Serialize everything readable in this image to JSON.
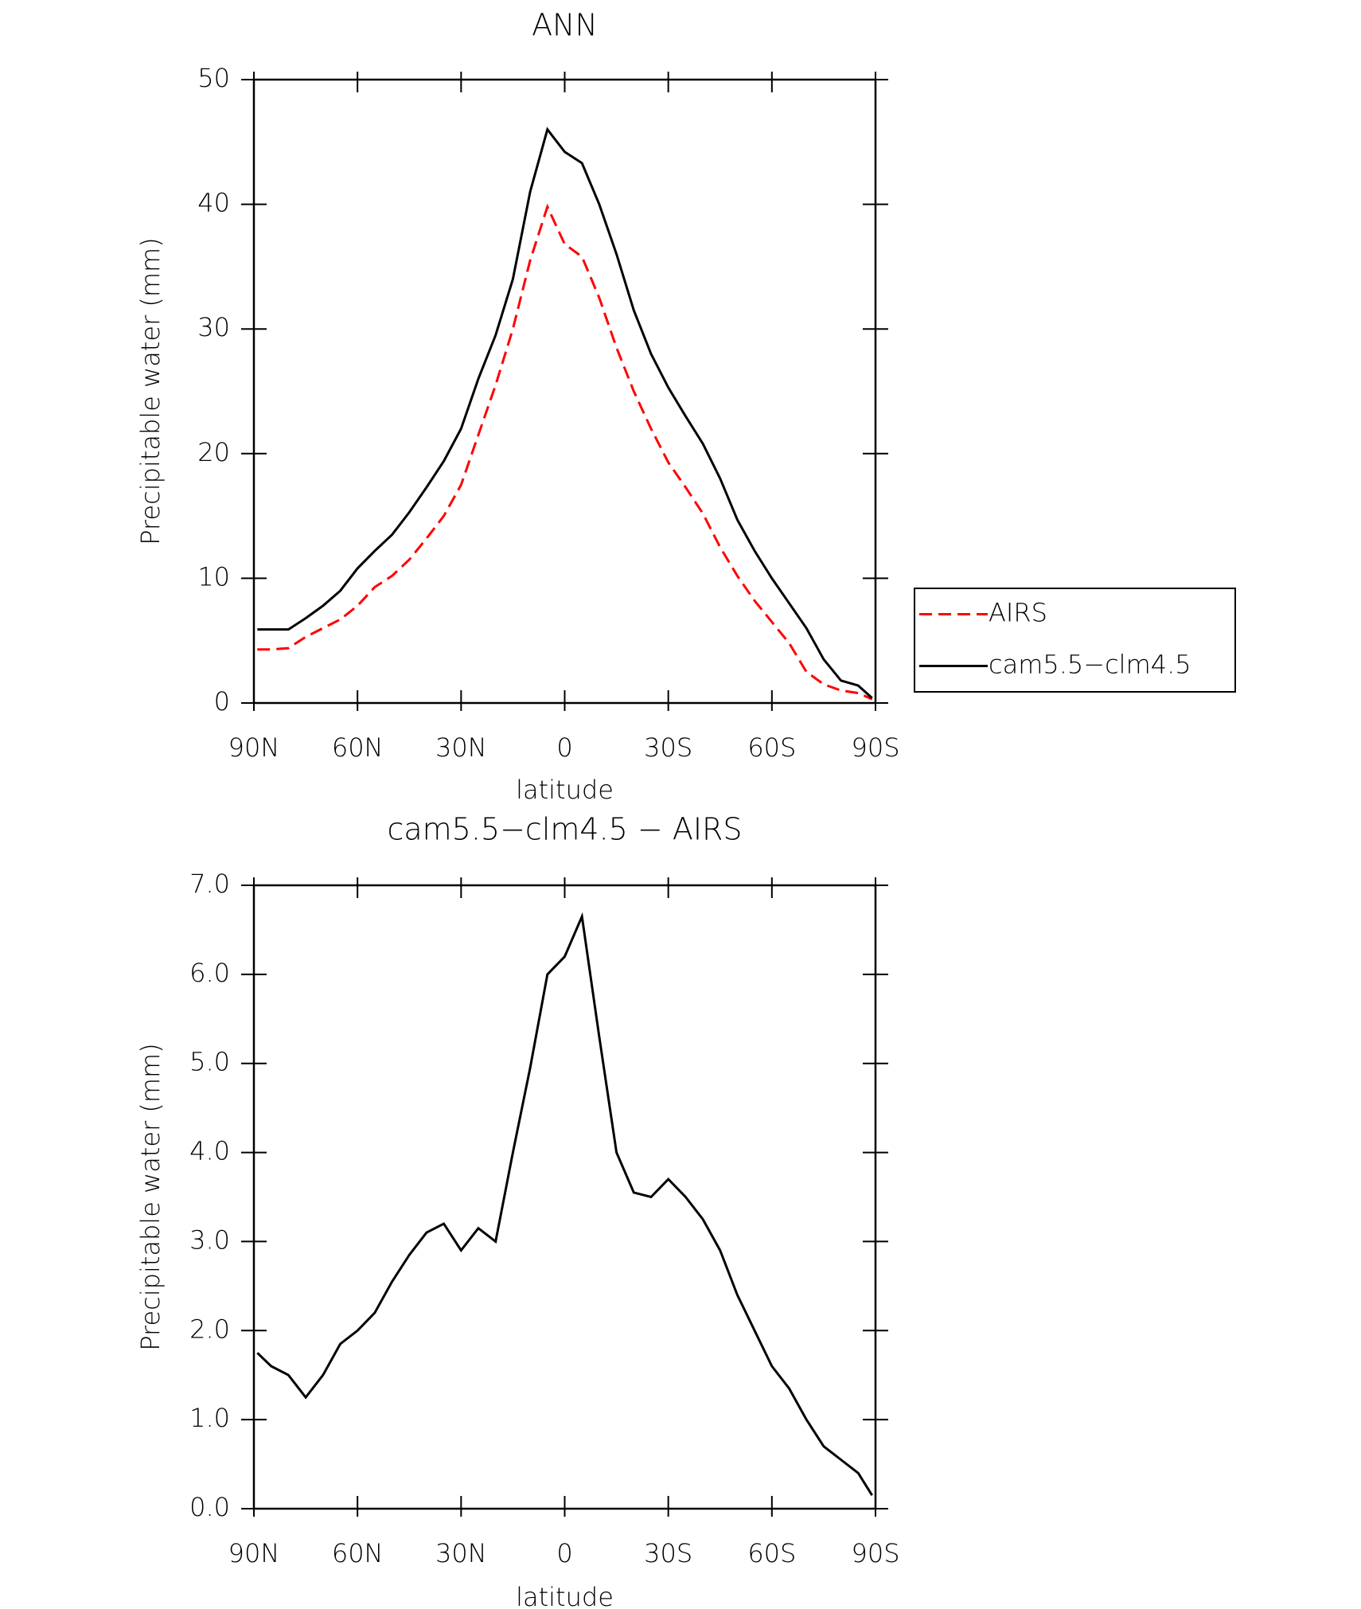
{
  "chart_data": [
    {
      "type": "line",
      "title": "ANN",
      "xlabel": "latitude",
      "ylabel": "Precipitable water (mm)",
      "x": [
        89,
        85,
        80,
        75,
        70,
        65,
        60,
        55,
        50,
        45,
        40,
        35,
        30,
        25,
        20,
        15,
        10,
        5,
        0,
        -5,
        -10,
        -15,
        -20,
        -25,
        -30,
        -35,
        -40,
        -45,
        -50,
        -55,
        -60,
        -65,
        -70,
        -75,
        -80,
        -85,
        -89
      ],
      "xlim": [
        90,
        -90
      ],
      "xticks": [
        {
          "value": 90,
          "label": "90N"
        },
        {
          "value": 60,
          "label": "60N"
        },
        {
          "value": 30,
          "label": "30N"
        },
        0,
        {
          "value": -30,
          "label": "30S"
        },
        {
          "value": -60,
          "label": "60S"
        },
        {
          "value": -90,
          "label": "90S"
        }
      ],
      "ylim": [
        0,
        50
      ],
      "yticks": [
        0,
        10,
        20,
        30,
        40,
        50
      ],
      "legend": "right",
      "series": [
        {
          "name": "AIRS",
          "color": "#ff0000",
          "dash": true,
          "values": [
            4.3,
            4.3,
            4.4,
            5.3,
            6.0,
            6.7,
            7.8,
            9.3,
            10.2,
            11.5,
            13.2,
            15.0,
            17.5,
            21.5,
            25.5,
            30.0,
            35.5,
            39.8,
            36.8,
            35.8,
            32.5,
            28.5,
            25.0,
            22.0,
            19.3,
            17.3,
            15.2,
            12.5,
            10.2,
            8.2,
            6.5,
            4.8,
            2.5,
            1.5,
            1.0,
            0.8,
            0.3
          ]
        },
        {
          "name": "cam5.5−clm4.5",
          "color": "#000000",
          "dash": false,
          "values": [
            5.9,
            5.9,
            5.9,
            6.8,
            7.8,
            9.0,
            10.8,
            12.2,
            13.5,
            15.3,
            17.3,
            19.4,
            22.0,
            26.0,
            29.5,
            34.0,
            41.0,
            46.0,
            44.2,
            43.3,
            40.0,
            36.0,
            31.5,
            28.0,
            25.3,
            23.0,
            20.8,
            18.0,
            14.7,
            12.2,
            10.0,
            8.0,
            6.0,
            3.5,
            1.8,
            1.4,
            0.4
          ]
        }
      ]
    },
    {
      "type": "line",
      "title": "cam5.5−clm4.5 − AIRS",
      "xlabel": "latitude",
      "ylabel": "Precipitable water (mm)",
      "x": [
        89,
        85,
        80,
        75,
        70,
        65,
        60,
        55,
        50,
        45,
        40,
        35,
        30,
        25,
        20,
        15,
        10,
        5,
        0,
        -5,
        -10,
        -15,
        -20,
        -25,
        -30,
        -35,
        -40,
        -45,
        -50,
        -55,
        -60,
        -65,
        -70,
        -75,
        -80,
        -85,
        -89
      ],
      "xlim": [
        90,
        -90
      ],
      "xticks": [
        {
          "value": 90,
          "label": "90N"
        },
        {
          "value": 60,
          "label": "60N"
        },
        {
          "value": 30,
          "label": "30N"
        },
        0,
        {
          "value": -30,
          "label": "30S"
        },
        {
          "value": -60,
          "label": "60S"
        },
        {
          "value": -90,
          "label": "90S"
        }
      ],
      "ylim": [
        0,
        7
      ],
      "yticks": [
        {
          "value": 0,
          "label": "0.0"
        },
        {
          "value": 1,
          "label": "1.0"
        },
        {
          "value": 2,
          "label": "2.0"
        },
        {
          "value": 3,
          "label": "3.0"
        },
        {
          "value": 4,
          "label": "4.0"
        },
        {
          "value": 5,
          "label": "5.0"
        },
        {
          "value": 6,
          "label": "6.0"
        },
        {
          "value": 7,
          "label": "7.0"
        }
      ],
      "series": [
        {
          "color": "#000000",
          "values": [
            1.75,
            1.6,
            1.5,
            1.25,
            1.5,
            1.85,
            2.0,
            2.2,
            2.55,
            2.85,
            3.1,
            3.2,
            2.9,
            3.15,
            3.0,
            4.0,
            4.95,
            6.0,
            6.2,
            6.65,
            5.3,
            4.0,
            3.55,
            3.5,
            3.7,
            3.5,
            3.25,
            2.9,
            2.4,
            2.0,
            1.6,
            1.35,
            1.0,
            0.7,
            0.55,
            0.4,
            0.15
          ]
        }
      ]
    }
  ]
}
